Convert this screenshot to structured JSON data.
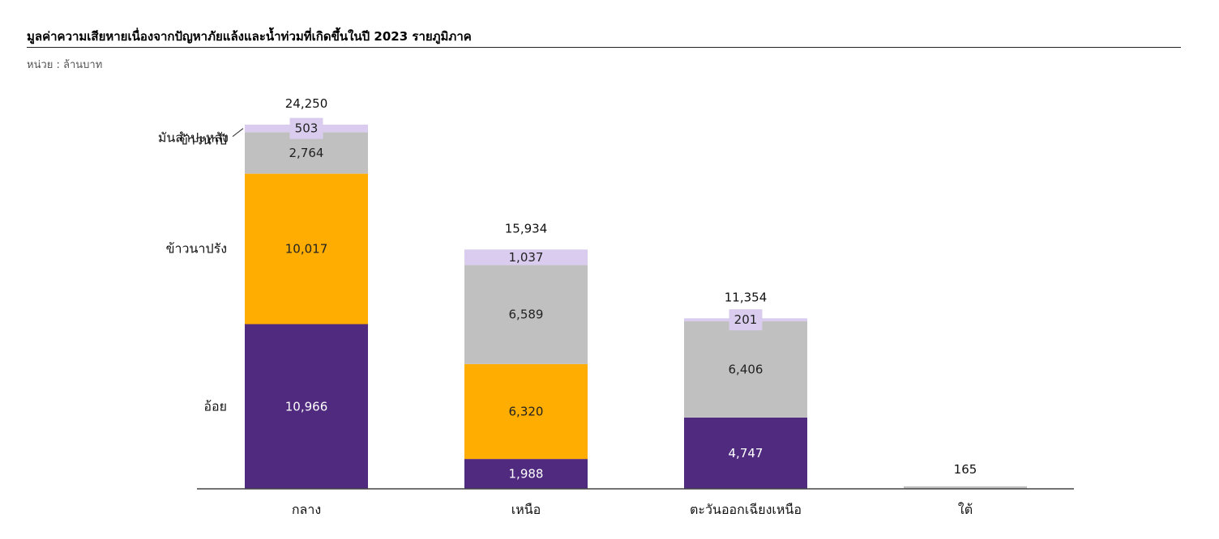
{
  "title": "มูลค่าความเสียหายเนื่องจากปัญหาภัยแล้งและน้ำท่วมที่เกิดขึ้นในปี  2023 รายภูมิภาค",
  "unit_label": "หน่วย : ล้านบาท",
  "colors": {
    "อ้อย": "#4F2A7F",
    "ข้าวนาปรัง": "#FFAD00",
    "ข้าวนาปี": "#C0C0C0",
    "มันสำปะหลัง": "#D9CCEE",
    "axis": "#444444",
    "label_light": "#ffffff",
    "label_dark": "#222222"
  },
  "chart_data": {
    "type": "bar",
    "stacked": true,
    "title": "มูลค่าความเสียหายเนื่องจากปัญหาภัยแล้งและน้ำท่วมที่เกิดขึ้นในปี  2023 รายภูมิภาค",
    "ylabel": "หน่วย : ล้านบาท",
    "categories": [
      "กลาง",
      "เหนือ",
      "ตะวันออกเฉียงเหนือ",
      "ใต้"
    ],
    "series": [
      {
        "name": "อ้อย",
        "values": [
          10966,
          1988,
          4747,
          0
        ]
      },
      {
        "name": "ข้าวนาปรัง",
        "values": [
          10017,
          6320,
          0,
          0
        ]
      },
      {
        "name": "ข้าวนาปี",
        "values": [
          2764,
          6589,
          6406,
          165
        ]
      },
      {
        "name": "มันสำปะหลัง",
        "values": [
          503,
          1037,
          201,
          0
        ]
      }
    ],
    "totals": [
      24250,
      15934,
      11354,
      165
    ],
    "value_labels": [
      [
        "10,966",
        "10,017",
        "2,764",
        "503"
      ],
      [
        "1,988",
        "6,320",
        "6,589",
        "1,037"
      ],
      [
        "4,747",
        "",
        "6,406",
        "201"
      ],
      [
        "",
        "",
        "",
        ""
      ]
    ],
    "total_labels": [
      "24,250",
      "15,934",
      "11,354",
      "165"
    ],
    "legend": "series labels left of first bar",
    "ylim": [
      0,
      24250
    ],
    "grid": false
  }
}
